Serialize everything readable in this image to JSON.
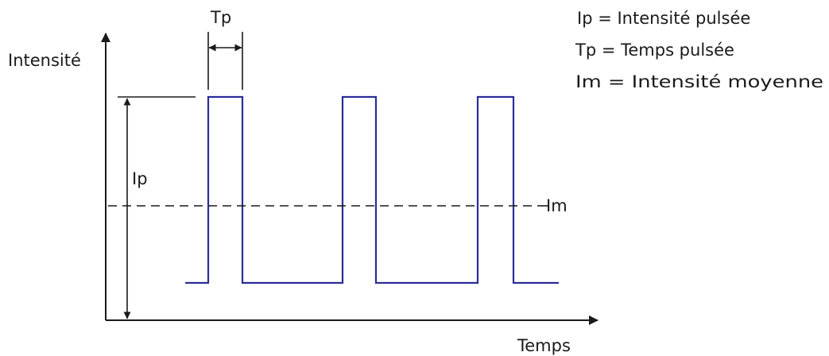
{
  "axes": {
    "y_label": "Intensité",
    "x_label": "Temps"
  },
  "annotations": {
    "tp": "Tp",
    "ip": "Ip",
    "im": "Im"
  },
  "legend": [
    {
      "text": "Ip = Intensité pulsée"
    },
    {
      "text": "Tp = Temps pulsée"
    },
    {
      "text": "Im = Intensité moyenne"
    }
  ],
  "colors": {
    "pulse": "#2b2d9a",
    "ink": "#1a1a1a"
  }
}
